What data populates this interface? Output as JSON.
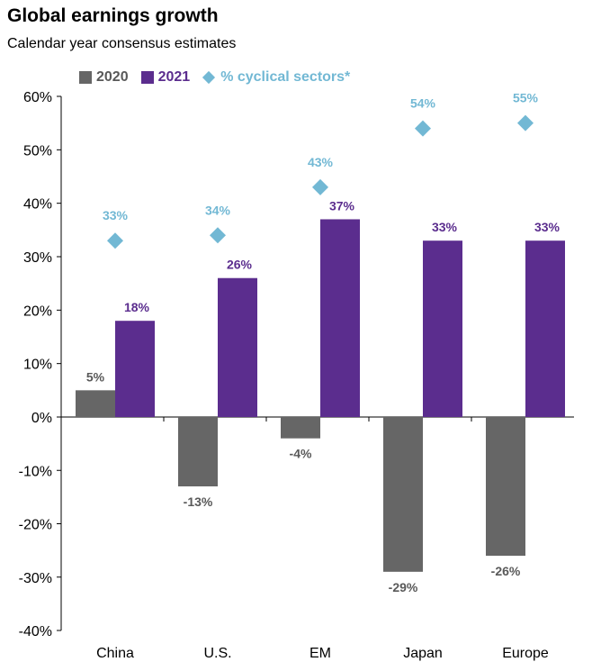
{
  "title": "Global earnings growth",
  "subtitle": "Calendar year consensus estimates",
  "colors": {
    "series_2020": "#666666",
    "series_2021": "#5b2d8e",
    "cyclical": "#72b8d4",
    "label_2020": "#595959",
    "label_2021": "#5b2d8e",
    "label_cyclical": "#72b8d4",
    "axis": "#000000"
  },
  "chart_data": {
    "type": "bar",
    "title": "Global earnings growth",
    "subtitle": "Calendar year consensus estimates",
    "categories": [
      "China",
      "U.S.",
      "EM",
      "Japan",
      "Europe"
    ],
    "series": [
      {
        "name": "2020",
        "kind": "bar",
        "values": [
          5,
          -13,
          -4,
          -29,
          -26
        ],
        "labels": [
          "5%",
          "-13%",
          "-4%",
          "-29%",
          "-26%"
        ]
      },
      {
        "name": "2021",
        "kind": "bar",
        "values": [
          18,
          26,
          37,
          33,
          33
        ],
        "labels": [
          "18%",
          "26%",
          "37%",
          "33%",
          "33%"
        ]
      },
      {
        "name": "% cyclical sectors*",
        "kind": "marker",
        "marker": "diamond",
        "values": [
          33,
          34,
          43,
          54,
          55
        ],
        "labels": [
          "33%",
          "34%",
          "43%",
          "54%",
          "55%"
        ]
      }
    ],
    "ylim": [
      -40,
      60
    ],
    "yticks": [
      -40,
      -30,
      -20,
      -10,
      0,
      10,
      20,
      30,
      40,
      50,
      60
    ],
    "ytick_labels": [
      "-40%",
      "-30%",
      "-20%",
      "-10%",
      "0%",
      "10%",
      "20%",
      "30%",
      "40%",
      "50%",
      "60%"
    ],
    "grid": false,
    "legend_position": "top-left"
  }
}
